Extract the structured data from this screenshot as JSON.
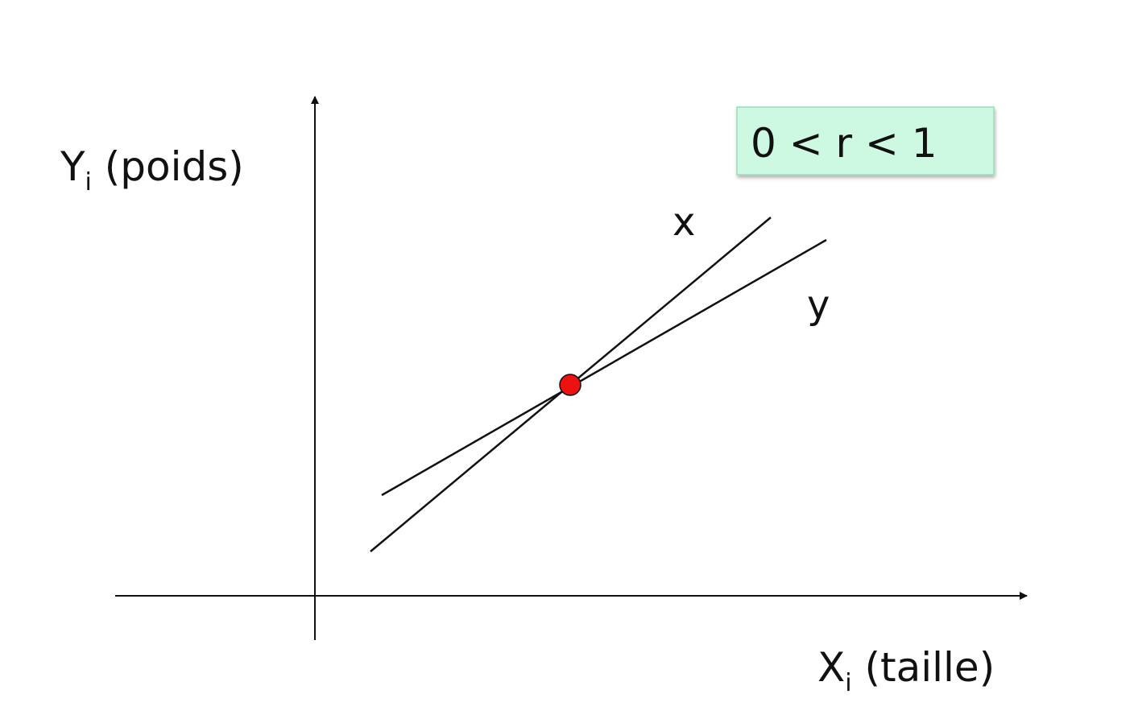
{
  "y_axis_label": {
    "main": "Y",
    "sub": "i",
    "rest": " (poids)"
  },
  "x_axis_label": {
    "main": "X",
    "sub": "i",
    "rest": " (taille)"
  },
  "line_labels": {
    "x": "x",
    "y": "y"
  },
  "correlation_box": {
    "text": "0 < r < 1",
    "fill": "#cdf9e3",
    "border": "#9adbbb"
  },
  "point_color": "#ee1111"
}
